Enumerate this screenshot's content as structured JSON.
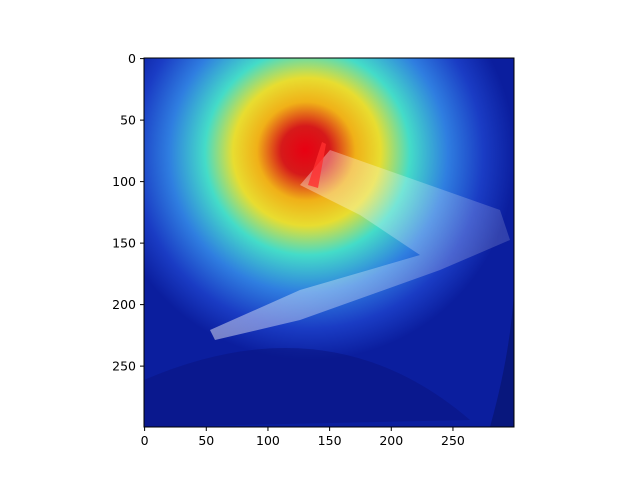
{
  "chart_data": {
    "type": "heatmap",
    "title": "",
    "xlabel": "",
    "ylabel": "",
    "xlim": [
      0,
      299
    ],
    "ylim": [
      299,
      0
    ],
    "x_ticks": [
      0,
      50,
      100,
      150,
      200,
      250
    ],
    "y_ticks": [
      0,
      50,
      100,
      150,
      200,
      250
    ],
    "grid": false,
    "colormap": "jet",
    "overlay": "heatmap over aerial photo of an airplane wing and winglet",
    "peak": {
      "x": 135,
      "y": 80,
      "value": 1.0
    },
    "colors": {
      "peak": "#e00010",
      "high": "#f3c21a",
      "mid": "#3fd8c8",
      "low": "#1844c8",
      "background": "#0b1e9e"
    }
  }
}
